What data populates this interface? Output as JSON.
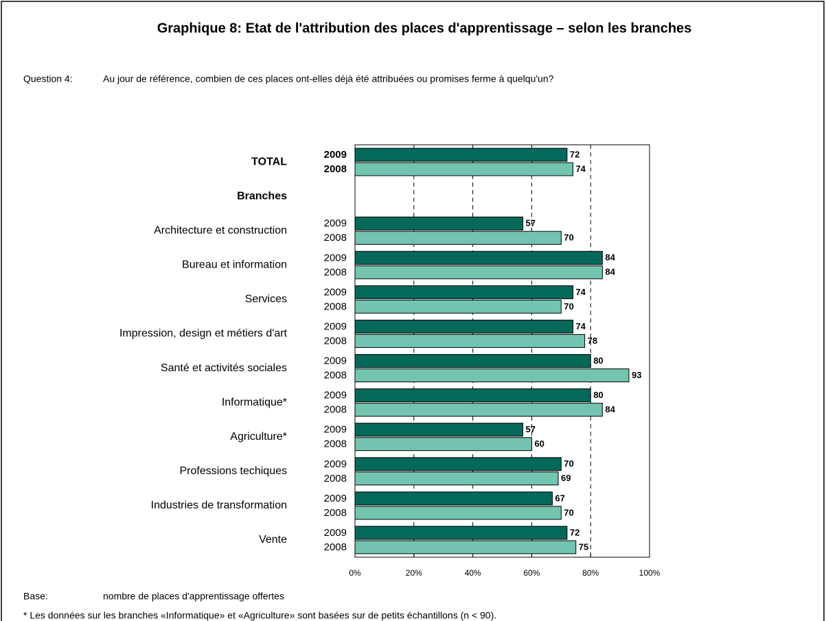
{
  "chart_data": {
    "type": "hbar",
    "title": "Graphique 8: Etat de l'attribution des places d'apprentissage – selon les branches",
    "question_label": "Question 4:",
    "question": "Au jour de référence, combien de ces places ont-elles déjà été attribuées ou promises ferme à quelqu'un?",
    "categories": [
      "TOTAL",
      "Branches",
      "Architecture et construction",
      "Bureau et information",
      "Services",
      "Impression, design et métiers d'art",
      "Santé et activités sociales",
      "Informatique*",
      "Agriculture*",
      "Professions techiques",
      "Industries de transformation",
      "Vente"
    ],
    "series": [
      {
        "name": "2009",
        "color": "#05695a",
        "values": [
          72,
          null,
          57,
          84,
          74,
          74,
          80,
          80,
          57,
          70,
          67,
          72
        ]
      },
      {
        "name": "2008",
        "color": "#72c4b0",
        "values": [
          74,
          null,
          70,
          84,
          70,
          78,
          93,
          84,
          60,
          69,
          70,
          75
        ]
      }
    ],
    "xlim": [
      0,
      100
    ],
    "xticks": [
      {
        "value": 0,
        "label": "0%"
      },
      {
        "value": 20,
        "label": "20%"
      },
      {
        "value": 40,
        "label": "40%"
      },
      {
        "value": 60,
        "label": "60%"
      },
      {
        "value": 80,
        "label": "80%"
      },
      {
        "value": 100,
        "label": "100%"
      }
    ],
    "grid": true,
    "base_label": "Base:",
    "base": "nombre de places d'apprentissage offertes",
    "footnote": "* Les données sur les branches «Informatique» et «Agriculture» sont basées sur de petits échantillons (n < 90)."
  }
}
